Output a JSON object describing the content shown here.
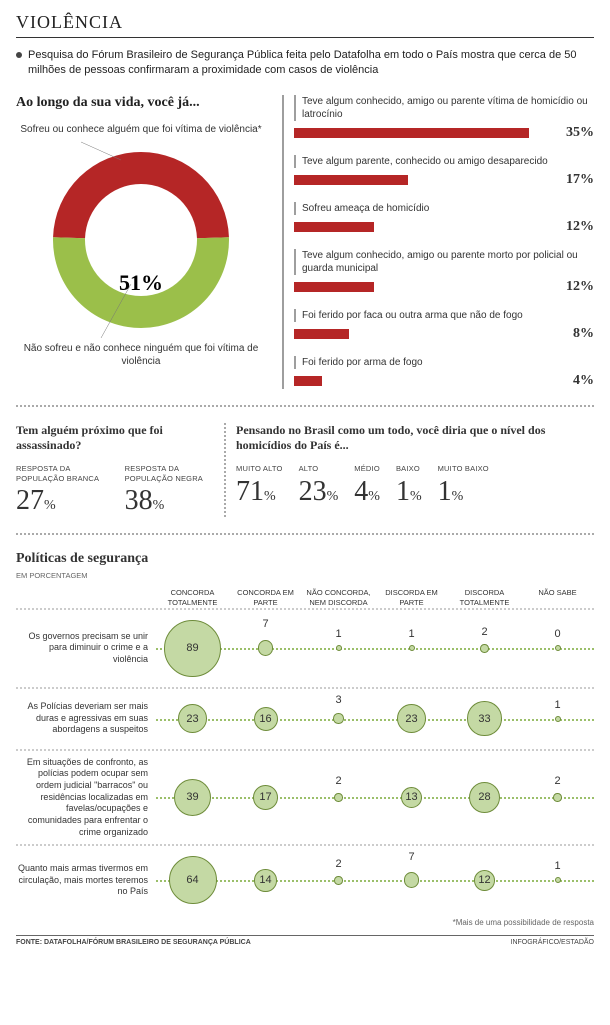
{
  "title": "VIOLÊNCIA",
  "intro": "Pesquisa do Fórum Brasileiro de Segurança Pública feita pelo Datafolha em todo o País mostra que cerca de 50 milhões de pessoas confirmaram a proximidade com casos de violência",
  "donut": {
    "heading": "Ao longo da sua vida, você já...",
    "label_top": "Sofreu ou conhece alguém que foi vítima de violência*",
    "label_bottom": "Não sofreu e não conhece ninguém que foi vítima de violência",
    "percent_victim": 49,
    "percent_not": 51,
    "display_value": "51%",
    "color_victim": "#b52626",
    "color_not": "#9bbf4a",
    "inner_radius": 56,
    "outer_radius": 88
  },
  "bars": {
    "color": "#b52626",
    "max_percent": 40,
    "items": [
      {
        "label": "Teve algum conhecido, amigo ou parente vítima de homicídio ou latrocínio",
        "value": 35,
        "display": "35%"
      },
      {
        "label": "Teve algum parente, conhecido ou amigo desaparecido",
        "value": 17,
        "display": "17%"
      },
      {
        "label": "Sofreu ameaça de homicídio",
        "value": 12,
        "display": "12%"
      },
      {
        "label": "Teve algum conhecido, amigo ou parente morto por policial ou guarda municipal",
        "value": 12,
        "display": "12%"
      },
      {
        "label": "Foi ferido por faca ou outra arma que não de fogo",
        "value": 8,
        "display": "8%"
      },
      {
        "label": "Foi ferido por arma de fogo",
        "value": 4,
        "display": "4%"
      }
    ]
  },
  "mid": {
    "left_heading": "Tem alguém próximo que foi assassinado?",
    "left_items": [
      {
        "label": "RESPOSTA DA POPULAÇÃO BRANCA",
        "value": "27",
        "pct": "%"
      },
      {
        "label": "RESPOSTA DA POPULAÇÃO NEGRA",
        "value": "38",
        "pct": "%"
      }
    ],
    "right_heading": "Pensando no Brasil como um todo, você diria que o nível dos homicídios do País é...",
    "right_items": [
      {
        "label": "MUITO ALTO",
        "value": "71",
        "pct": "%"
      },
      {
        "label": "ALTO",
        "value": "23",
        "pct": "%"
      },
      {
        "label": "MÉDIO",
        "value": "4",
        "pct": "%"
      },
      {
        "label": "BAIXO",
        "value": "1",
        "pct": "%"
      },
      {
        "label": "MUITO BAIXO",
        "value": "1",
        "pct": "%"
      }
    ]
  },
  "policy": {
    "title": "Políticas de segurança",
    "subtitle": "EM PORCENTAGEM",
    "columns": [
      "CONCORDA TOTALMENTE",
      "CONCORDA EM PARTE",
      "NÃO CONCORDA, NEM DISCORDA",
      "DISCORDA EM PARTE",
      "DISCORDA TOTALMENTE",
      "NÃO SABE"
    ],
    "bubble_border": "#6e8c3a",
    "bubble_fill": "#c4d9a4",
    "bubble_text": "#333333",
    "scale": 1.5,
    "min_radius": 3,
    "rows": [
      {
        "label": "Os governos precisam se unir para diminuir o crime e a violência",
        "values": [
          89,
          7,
          1,
          1,
          2,
          0
        ]
      },
      {
        "label": "As Polícias deveriam ser mais duras e agressivas em suas abordagens a suspeitos",
        "values": [
          23,
          16,
          3,
          23,
          33,
          1
        ]
      },
      {
        "label": "Em situações de confronto, as polícias podem ocupar sem ordem judicial \"barracos\" ou residências localizadas em favelas/ocupações e comunidades para enfrentar o crime organizado",
        "values": [
          39,
          17,
          2,
          13,
          28,
          2
        ]
      },
      {
        "label": "Quanto mais armas tivermos em circulação, mais mortes teremos no País",
        "values": [
          64,
          14,
          2,
          7,
          12,
          1
        ]
      }
    ]
  },
  "footnote": "*Mais de uma possibilidade de resposta",
  "footer_left": "FONTE: DATAFOLHA/FÓRUM BRASILEIRO DE SEGURANÇA PÚBLICA",
  "footer_right": "INFOGRÁFICO/ESTADÃO"
}
